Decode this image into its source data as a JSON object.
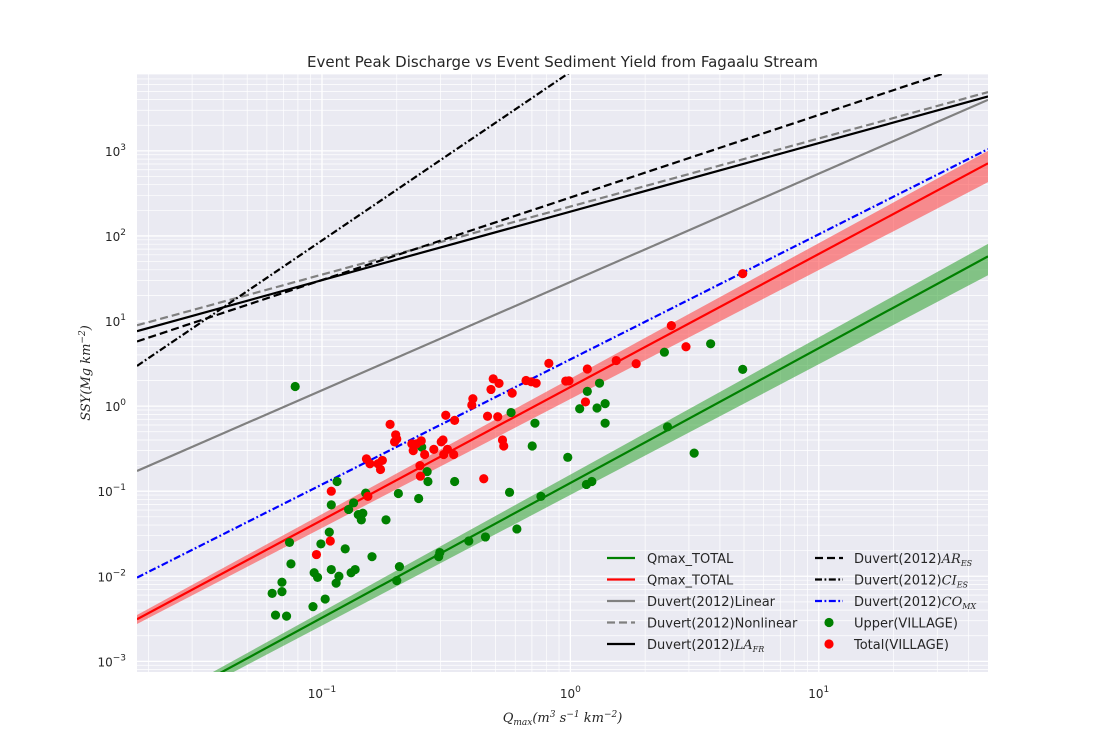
{
  "chart_data": {
    "type": "scatter",
    "title": "Event Peak Discharge vs Event Sediment Yield from Fagaalu Stream",
    "xlabel": "Q_max(m^3 s^-1 km^-2)",
    "ylabel": "SSY(Mg km^-2)",
    "xscale": "log",
    "yscale": "log",
    "xlim": [
      0.018,
      48
    ],
    "ylim": [
      0.00075,
      8000
    ],
    "x_tick_labels": [
      {
        "value": 0.1,
        "base": "10",
        "exp": "−1"
      },
      {
        "value": 1,
        "base": "10",
        "exp": "0"
      },
      {
        "value": 10,
        "base": "10",
        "exp": "1"
      }
    ],
    "y_tick_labels": [
      {
        "value": 0.001,
        "base": "10",
        "exp": "−3"
      },
      {
        "value": 0.01,
        "base": "10",
        "exp": "−2"
      },
      {
        "value": 0.1,
        "base": "10",
        "exp": "−1"
      },
      {
        "value": 1,
        "base": "10",
        "exp": "0"
      },
      {
        "value": 10,
        "base": "10",
        "exp": "1"
      },
      {
        "value": 100,
        "base": "10",
        "exp": "2"
      },
      {
        "value": 1000,
        "base": "10",
        "exp": "3"
      }
    ],
    "grid": true,
    "legend_position": "lower-right",
    "lines": [
      {
        "name": "Qmax_TOTAL",
        "color": "#008000",
        "dash": "solid",
        "a": 0.125,
        "b": 1.584,
        "band": true,
        "band_color": "#2ca02c"
      },
      {
        "name": "Qmax_TOTAL",
        "color": "#ff0000",
        "dash": "solid",
        "a": 1.675,
        "b": 1.564,
        "band": true,
        "band_color": "#ff3b3b"
      },
      {
        "name": "Duvert(2012)Linear",
        "color": "#808080",
        "dash": "solid",
        "a": 28.78,
        "b": 1.273,
        "band": false
      },
      {
        "name": "Duvert(2012)Nonlinear",
        "color": "#808080",
        "dash": "dashed",
        "a": 221.5,
        "b": 0.8,
        "band": false
      },
      {
        "name": "Duvert(2012)LA_FR",
        "color": "#000000",
        "dash": "solid",
        "a": 193.0,
        "b": 0.805,
        "band": false
      },
      {
        "name": "Duvert(2012)AR_ES",
        "color": "#000000",
        "dash": "dashed",
        "a": 283.0,
        "b": 0.97,
        "band": false
      },
      {
        "name": "Duvert(2012)CI_ES",
        "color": "#000000",
        "dash": "dashdot",
        "a": 8450,
        "b": 1.98,
        "band": false
      },
      {
        "name": "Duvert(2012)CO_MX",
        "color": "#0000ff",
        "dash": "dashdot",
        "a": 3.54,
        "b": 1.47,
        "band": false
      }
    ],
    "series": [
      {
        "name": "Upper(VILLAGE)",
        "color": "#008000",
        "points": [
          [
            0.063,
            0.0063
          ],
          [
            0.065,
            0.0035
          ],
          [
            0.069,
            0.0085
          ],
          [
            0.069,
            0.0066
          ],
          [
            0.072,
            0.0034
          ],
          [
            0.074,
            0.025
          ],
          [
            0.075,
            0.014
          ],
          [
            0.078,
            1.7
          ],
          [
            0.092,
            0.0044
          ],
          [
            0.093,
            0.011
          ],
          [
            0.096,
            0.0097
          ],
          [
            0.099,
            0.024
          ],
          [
            0.103,
            0.0054
          ],
          [
            0.107,
            0.033
          ],
          [
            0.109,
            0.069
          ],
          [
            0.109,
            0.012
          ],
          [
            0.114,
            0.0083
          ],
          [
            0.115,
            0.13
          ],
          [
            0.117,
            0.01
          ],
          [
            0.124,
            0.021
          ],
          [
            0.128,
            0.061
          ],
          [
            0.131,
            0.011
          ],
          [
            0.134,
            0.073
          ],
          [
            0.136,
            0.012
          ],
          [
            0.14,
            0.053
          ],
          [
            0.144,
            0.046
          ],
          [
            0.146,
            0.055
          ],
          [
            0.15,
            0.095
          ],
          [
            0.159,
            0.017
          ],
          [
            0.181,
            0.046
          ],
          [
            0.2,
            0.0089
          ],
          [
            0.203,
            0.094
          ],
          [
            0.205,
            0.013
          ],
          [
            0.245,
            0.082
          ],
          [
            0.252,
            0.33
          ],
          [
            0.265,
            0.17
          ],
          [
            0.267,
            0.13
          ],
          [
            0.295,
            0.017
          ],
          [
            0.298,
            0.019
          ],
          [
            0.342,
            0.13
          ],
          [
            0.39,
            0.026
          ],
          [
            0.455,
            0.029
          ],
          [
            0.569,
            0.097
          ],
          [
            0.577,
            0.84
          ],
          [
            0.609,
            0.036
          ],
          [
            0.702,
            0.34
          ],
          [
            0.72,
            0.63
          ],
          [
            0.761,
            0.087
          ],
          [
            0.976,
            0.25
          ],
          [
            1.09,
            0.93
          ],
          [
            1.16,
            0.12
          ],
          [
            1.17,
            1.49
          ],
          [
            1.22,
            0.13
          ],
          [
            1.28,
            0.95
          ],
          [
            1.31,
            1.86
          ],
          [
            1.38,
            0.63
          ],
          [
            1.38,
            1.07
          ],
          [
            2.39,
            4.3
          ],
          [
            2.46,
            0.57
          ],
          [
            3.15,
            0.28
          ],
          [
            3.67,
            5.4
          ],
          [
            4.94,
            2.7
          ]
        ]
      },
      {
        "name": "Total(VILLAGE)",
        "color": "#ff0000",
        "points": [
          [
            0.095,
            0.018
          ],
          [
            0.108,
            0.026
          ],
          [
            0.109,
            0.1
          ],
          [
            0.151,
            0.24
          ],
          [
            0.153,
            0.087
          ],
          [
            0.156,
            0.21
          ],
          [
            0.168,
            0.21
          ],
          [
            0.172,
            0.18
          ],
          [
            0.175,
            0.23
          ],
          [
            0.188,
            0.61
          ],
          [
            0.196,
            0.38
          ],
          [
            0.198,
            0.46
          ],
          [
            0.2,
            0.41
          ],
          [
            0.23,
            0.36
          ],
          [
            0.233,
            0.3
          ],
          [
            0.24,
            0.36
          ],
          [
            0.248,
            0.2
          ],
          [
            0.249,
            0.15
          ],
          [
            0.251,
            0.39
          ],
          [
            0.259,
            0.27
          ],
          [
            0.282,
            0.31
          ],
          [
            0.302,
            0.38
          ],
          [
            0.307,
            0.4
          ],
          [
            0.309,
            0.27
          ],
          [
            0.315,
            0.78
          ],
          [
            0.32,
            0.31
          ],
          [
            0.339,
            0.27
          ],
          [
            0.342,
            0.68
          ],
          [
            0.401,
            1.03
          ],
          [
            0.405,
            1.22
          ],
          [
            0.448,
            0.14
          ],
          [
            0.464,
            0.76
          ],
          [
            0.479,
            1.57
          ],
          [
            0.489,
            2.09
          ],
          [
            0.51,
            0.75
          ],
          [
            0.516,
            1.85
          ],
          [
            0.533,
            0.4
          ],
          [
            0.539,
            0.34
          ],
          [
            0.583,
            1.42
          ],
          [
            0.663,
            2.0
          ],
          [
            0.696,
            1.93
          ],
          [
            0.728,
            1.86
          ],
          [
            0.819,
            3.18
          ],
          [
            0.958,
            1.97
          ],
          [
            0.987,
            1.98
          ],
          [
            1.15,
            1.12
          ],
          [
            1.17,
            2.73
          ],
          [
            1.53,
            3.43
          ],
          [
            1.84,
            3.15
          ],
          [
            2.55,
            8.82
          ],
          [
            2.92,
            4.98
          ],
          [
            4.94,
            36.0
          ]
        ]
      }
    ],
    "legend": {
      "col1": [
        {
          "label": "Qmax_TOTAL",
          "kind": "line",
          "color": "#008000",
          "dash": "solid"
        },
        {
          "label": "Qmax_TOTAL",
          "kind": "line",
          "color": "#ff0000",
          "dash": "solid"
        },
        {
          "label": "Duvert(2012)Linear",
          "kind": "line",
          "color": "#808080",
          "dash": "solid"
        },
        {
          "label": "Duvert(2012)Nonlinear",
          "kind": "line",
          "color": "#808080",
          "dash": "dashed"
        },
        {
          "label": "Duvert(2012)",
          "sub_main": "LA",
          "sub": "FR",
          "kind": "line",
          "color": "#000000",
          "dash": "solid"
        }
      ],
      "col2": [
        {
          "label": "Duvert(2012)",
          "sub_main": "AR",
          "sub": "ES",
          "kind": "line",
          "color": "#000000",
          "dash": "dashed"
        },
        {
          "label": "Duvert(2012)",
          "sub_main": "CI",
          "sub": "ES",
          "kind": "line",
          "color": "#000000",
          "dash": "dashdot"
        },
        {
          "label": "Duvert(2012)",
          "sub_main": "CO",
          "sub": "MX",
          "kind": "line",
          "color": "#0000ff",
          "dash": "dashdot"
        },
        {
          "label": "Upper(VILLAGE)",
          "kind": "dot",
          "color": "#008000"
        },
        {
          "label": "Total(VILLAGE)",
          "kind": "dot",
          "color": "#ff0000"
        }
      ]
    }
  }
}
